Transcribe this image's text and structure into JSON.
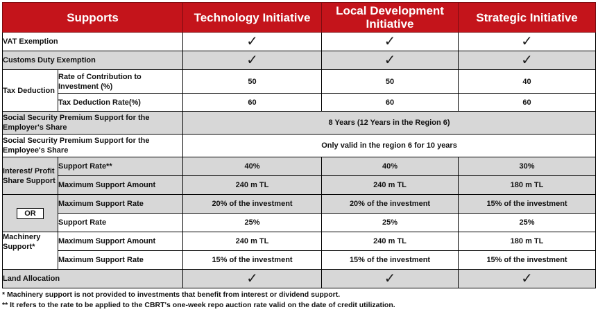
{
  "header": {
    "supports": "Supports",
    "col1": "Technology Initiative",
    "col2": "Local Development Initiative",
    "col3": "Strategic Initiative"
  },
  "check_glyph": "✓",
  "vat": {
    "label": "VAT Exemption"
  },
  "customs": {
    "label": "Customs Duty Exemption"
  },
  "tax": {
    "group": "Tax Deduction",
    "contrib_label": "Rate of Contribution to Investment (%)",
    "contrib": [
      "50",
      "50",
      "40"
    ],
    "deduct_label": "Tax Deduction Rate(%)",
    "deduct": [
      "60",
      "60",
      "60"
    ]
  },
  "ss_employer": {
    "label": "Social Security Premium Support for the Employer's Share",
    "value": "8 Years (12 Years in the Region 6)"
  },
  "ss_employee": {
    "label": "Social Security Premium Support for the Employee's Share",
    "value": "Only valid in the region 6 for 10 years"
  },
  "interest": {
    "group": "Interest/ Profit Share Support",
    "rate_label": "Support Rate**",
    "rate": [
      "40%",
      "40%",
      "30%"
    ],
    "amount_label": "Maximum Support Amount",
    "amount": [
      "240 m TL",
      "240 m TL",
      "180 m TL"
    ],
    "maxrate_label": "Maximum Support Rate",
    "maxrate": [
      "20% of the investment",
      "20% of the investment",
      "15% of the investment"
    ]
  },
  "or_label": "OR",
  "machinery": {
    "group": "Machinery Support*",
    "rate_label": "Support Rate",
    "rate": [
      "25%",
      "25%",
      "25%"
    ],
    "amount_label": "Maximum Support Amount",
    "amount": [
      "240 m TL",
      "240 m TL",
      "180 m TL"
    ],
    "maxrate_label": "Maximum Support Rate",
    "maxrate": [
      "15% of the investment",
      "15% of the investment",
      "15% of the investment"
    ]
  },
  "land": {
    "label": "Land Allocation"
  },
  "notes": {
    "note1": "* Machinery support is not provided to investments that benefit from interest or dividend support.",
    "note2": "** It refers to the rate to be applied to the CBRT's one-week repo auction rate valid on the date of credit utilization."
  }
}
